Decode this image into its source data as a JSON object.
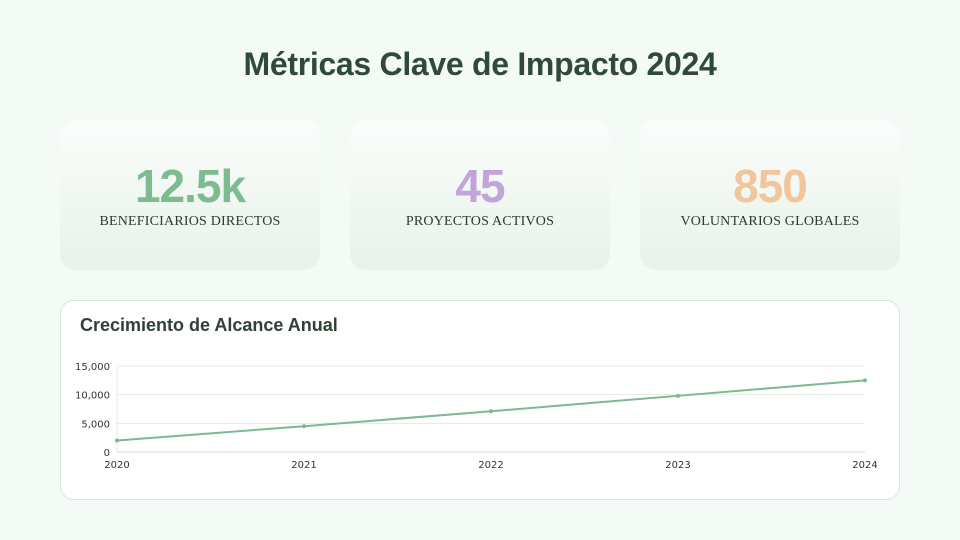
{
  "page": {
    "title": "Métricas Clave de Impacto 2024"
  },
  "cards": [
    {
      "value": "12.5k",
      "label": "BENEFICIARIOS DIRECTOS",
      "color": "#7dbb91"
    },
    {
      "value": "45",
      "label": "PROYECTOS ACTIVOS",
      "color": "#c3a3dc"
    },
    {
      "value": "850",
      "label": "VOLUNTARIOS GLOBALES",
      "color": "#f2c69b"
    }
  ],
  "chart_data": {
    "type": "line",
    "title": "Crecimiento de Alcance Anual",
    "x": [
      "2020",
      "2021",
      "2022",
      "2023",
      "2024"
    ],
    "series": [
      {
        "values": [
          2000,
          4500,
          7100,
          9800,
          12500
        ],
        "color": "#7fb894"
      }
    ],
    "ylim": [
      0,
      15000
    ],
    "yticks": [
      0,
      5000,
      10000,
      15000
    ],
    "ytick_labels": [
      "0",
      "5,000",
      "10,000",
      "15,000"
    ],
    "xlabel": "",
    "ylabel": "",
    "grid": true,
    "legend": "none"
  }
}
